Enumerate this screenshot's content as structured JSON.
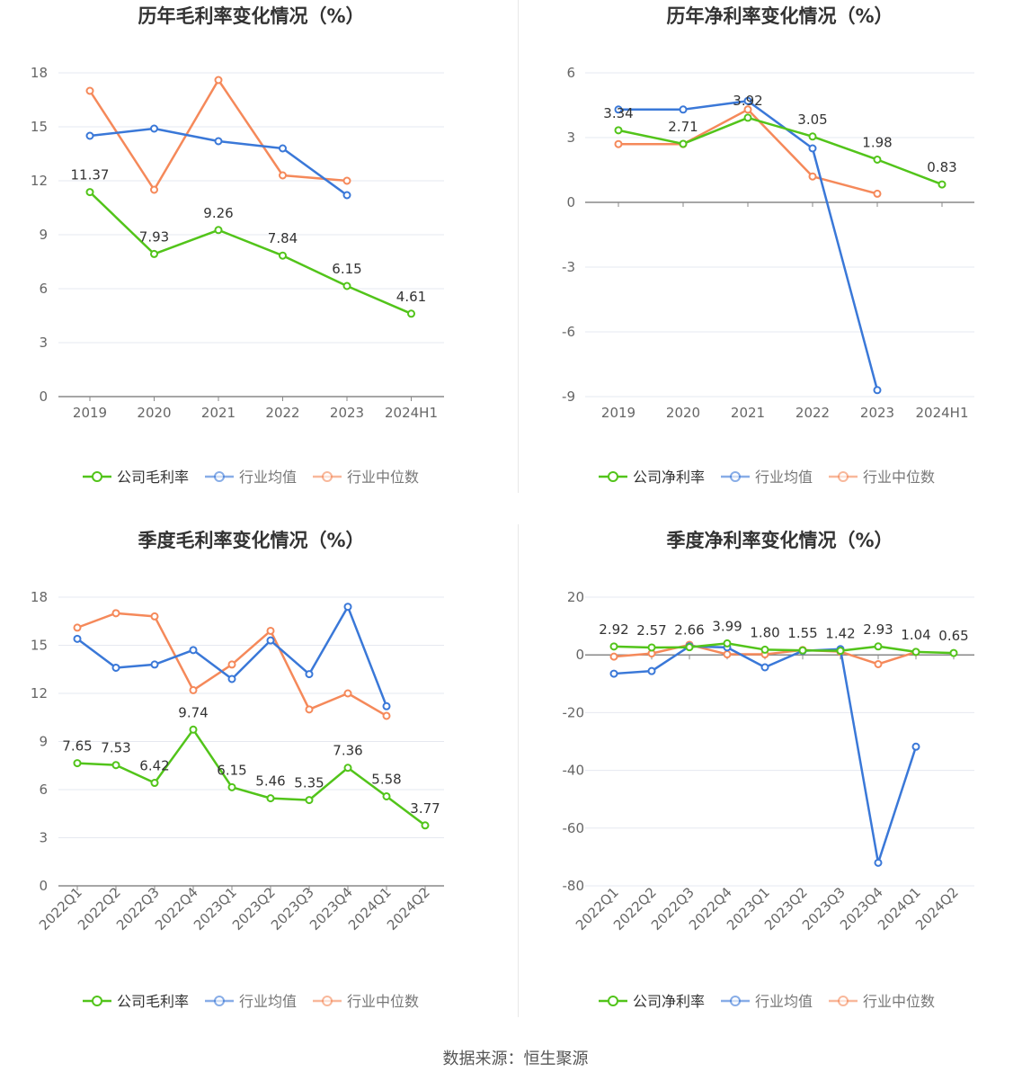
{
  "source_text": "数据来源：恒生聚源",
  "chart_data": [
    {
      "type": "line",
      "title": "历年毛利率变化情况（%）",
      "categories": [
        "2019",
        "2020",
        "2021",
        "2022",
        "2023",
        "2024H1"
      ],
      "ylim": [
        0,
        18
      ],
      "yticks": [
        0,
        3,
        6,
        9,
        12,
        15,
        18
      ],
      "grid": true,
      "legend_position": "bottom",
      "series": [
        {
          "name": "公司毛利率",
          "color": "#52c41a",
          "labels": true,
          "values": [
            11.37,
            7.93,
            9.26,
            7.84,
            6.15,
            4.61
          ]
        },
        {
          "name": "行业均值",
          "color": "#3a78d8",
          "values": [
            14.5,
            14.9,
            14.2,
            13.8,
            11.2,
            null
          ]
        },
        {
          "name": "行业中位数",
          "color": "#f5895a",
          "values": [
            17.0,
            11.5,
            17.6,
            12.3,
            12.0,
            null
          ]
        }
      ]
    },
    {
      "type": "line",
      "title": "历年净利率变化情况（%）",
      "categories": [
        "2019",
        "2020",
        "2021",
        "2022",
        "2023",
        "2024H1"
      ],
      "ylim": [
        -9,
        6
      ],
      "yticks": [
        -9,
        -6,
        -3,
        0,
        3,
        6
      ],
      "grid": true,
      "legend_position": "bottom",
      "series": [
        {
          "name": "公司净利率",
          "color": "#52c41a",
          "labels": true,
          "values": [
            3.34,
            2.71,
            3.92,
            3.05,
            1.98,
            0.83
          ]
        },
        {
          "name": "行业均值",
          "color": "#3a78d8",
          "values": [
            4.3,
            4.3,
            4.7,
            2.5,
            -8.7,
            null
          ]
        },
        {
          "name": "行业中位数",
          "color": "#f5895a",
          "values": [
            2.7,
            2.7,
            4.3,
            1.2,
            0.4,
            null
          ]
        }
      ]
    },
    {
      "type": "line",
      "title": "季度毛利率变化情况（%）",
      "categories": [
        "2022Q1",
        "2022Q2",
        "2022Q3",
        "2022Q4",
        "2023Q1",
        "2023Q2",
        "2023Q3",
        "2023Q4",
        "2024Q1",
        "2024Q2"
      ],
      "ylim": [
        0,
        18
      ],
      "yticks": [
        0,
        3,
        6,
        9,
        12,
        15,
        18
      ],
      "grid": true,
      "legend_position": "bottom",
      "series": [
        {
          "name": "公司毛利率",
          "color": "#52c41a",
          "labels": true,
          "values": [
            7.65,
            7.53,
            6.42,
            9.74,
            6.15,
            5.46,
            5.35,
            7.36,
            5.58,
            3.77
          ]
        },
        {
          "name": "行业均值",
          "color": "#3a78d8",
          "values": [
            15.4,
            13.6,
            13.8,
            14.7,
            12.9,
            15.3,
            13.2,
            17.4,
            11.2,
            null
          ]
        },
        {
          "name": "行业中位数",
          "color": "#f5895a",
          "values": [
            16.1,
            17.0,
            16.8,
            12.2,
            13.8,
            15.9,
            11.0,
            12.0,
            10.6,
            null
          ]
        }
      ]
    },
    {
      "type": "line",
      "title": "季度净利率变化情况（%）",
      "categories": [
        "2022Q1",
        "2022Q2",
        "2022Q3",
        "2022Q4",
        "2023Q1",
        "2023Q2",
        "2023Q3",
        "2023Q4",
        "2024Q1",
        "2024Q2"
      ],
      "ylim": [
        -80,
        20
      ],
      "yticks": [
        -80,
        -60,
        -40,
        -20,
        0,
        20
      ],
      "grid": true,
      "legend_position": "bottom",
      "series": [
        {
          "name": "公司净利率",
          "color": "#52c41a",
          "labels": true,
          "values": [
            2.92,
            2.57,
            2.66,
            3.99,
            1.8,
            1.55,
            1.42,
            2.93,
            1.04,
            0.65
          ]
        },
        {
          "name": "行业均值",
          "color": "#3a78d8",
          "values": [
            -6.5,
            -5.6,
            3.0,
            2.6,
            -4.3,
            1.4,
            2.0,
            -72.0,
            -31.8,
            null
          ]
        },
        {
          "name": "行业中位数",
          "color": "#f5895a",
          "values": [
            -0.6,
            0.5,
            3.5,
            0.2,
            0.2,
            1.7,
            1.1,
            -3.2,
            1.0,
            null
          ]
        }
      ]
    }
  ]
}
